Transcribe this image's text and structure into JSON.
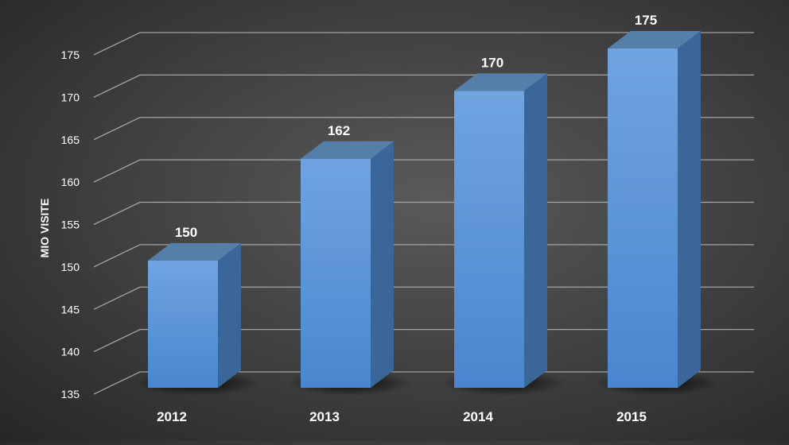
{
  "chart_data": {
    "type": "bar",
    "title": "",
    "xlabel": "",
    "ylabel": "MIO VISITE",
    "categories": [
      "2012",
      "2013",
      "2014",
      "2015"
    ],
    "values": [
      150,
      162,
      170,
      175
    ],
    "ylim": [
      135,
      175
    ],
    "yticks": [
      "135",
      "140",
      "145",
      "150",
      "155",
      "160",
      "165",
      "170",
      "175"
    ],
    "data_labels": [
      "150",
      "162",
      "170",
      "175"
    ],
    "grid": true,
    "three_d": true,
    "legend": "none",
    "colors": {
      "bar_front_top": "#6fa4df",
      "bar_front_bottom": "#4a86cf",
      "bar_side": "#3a6699",
      "bar_top": "#557ea9",
      "grid": "#b5b5b5",
      "text": "#ffffff"
    }
  }
}
